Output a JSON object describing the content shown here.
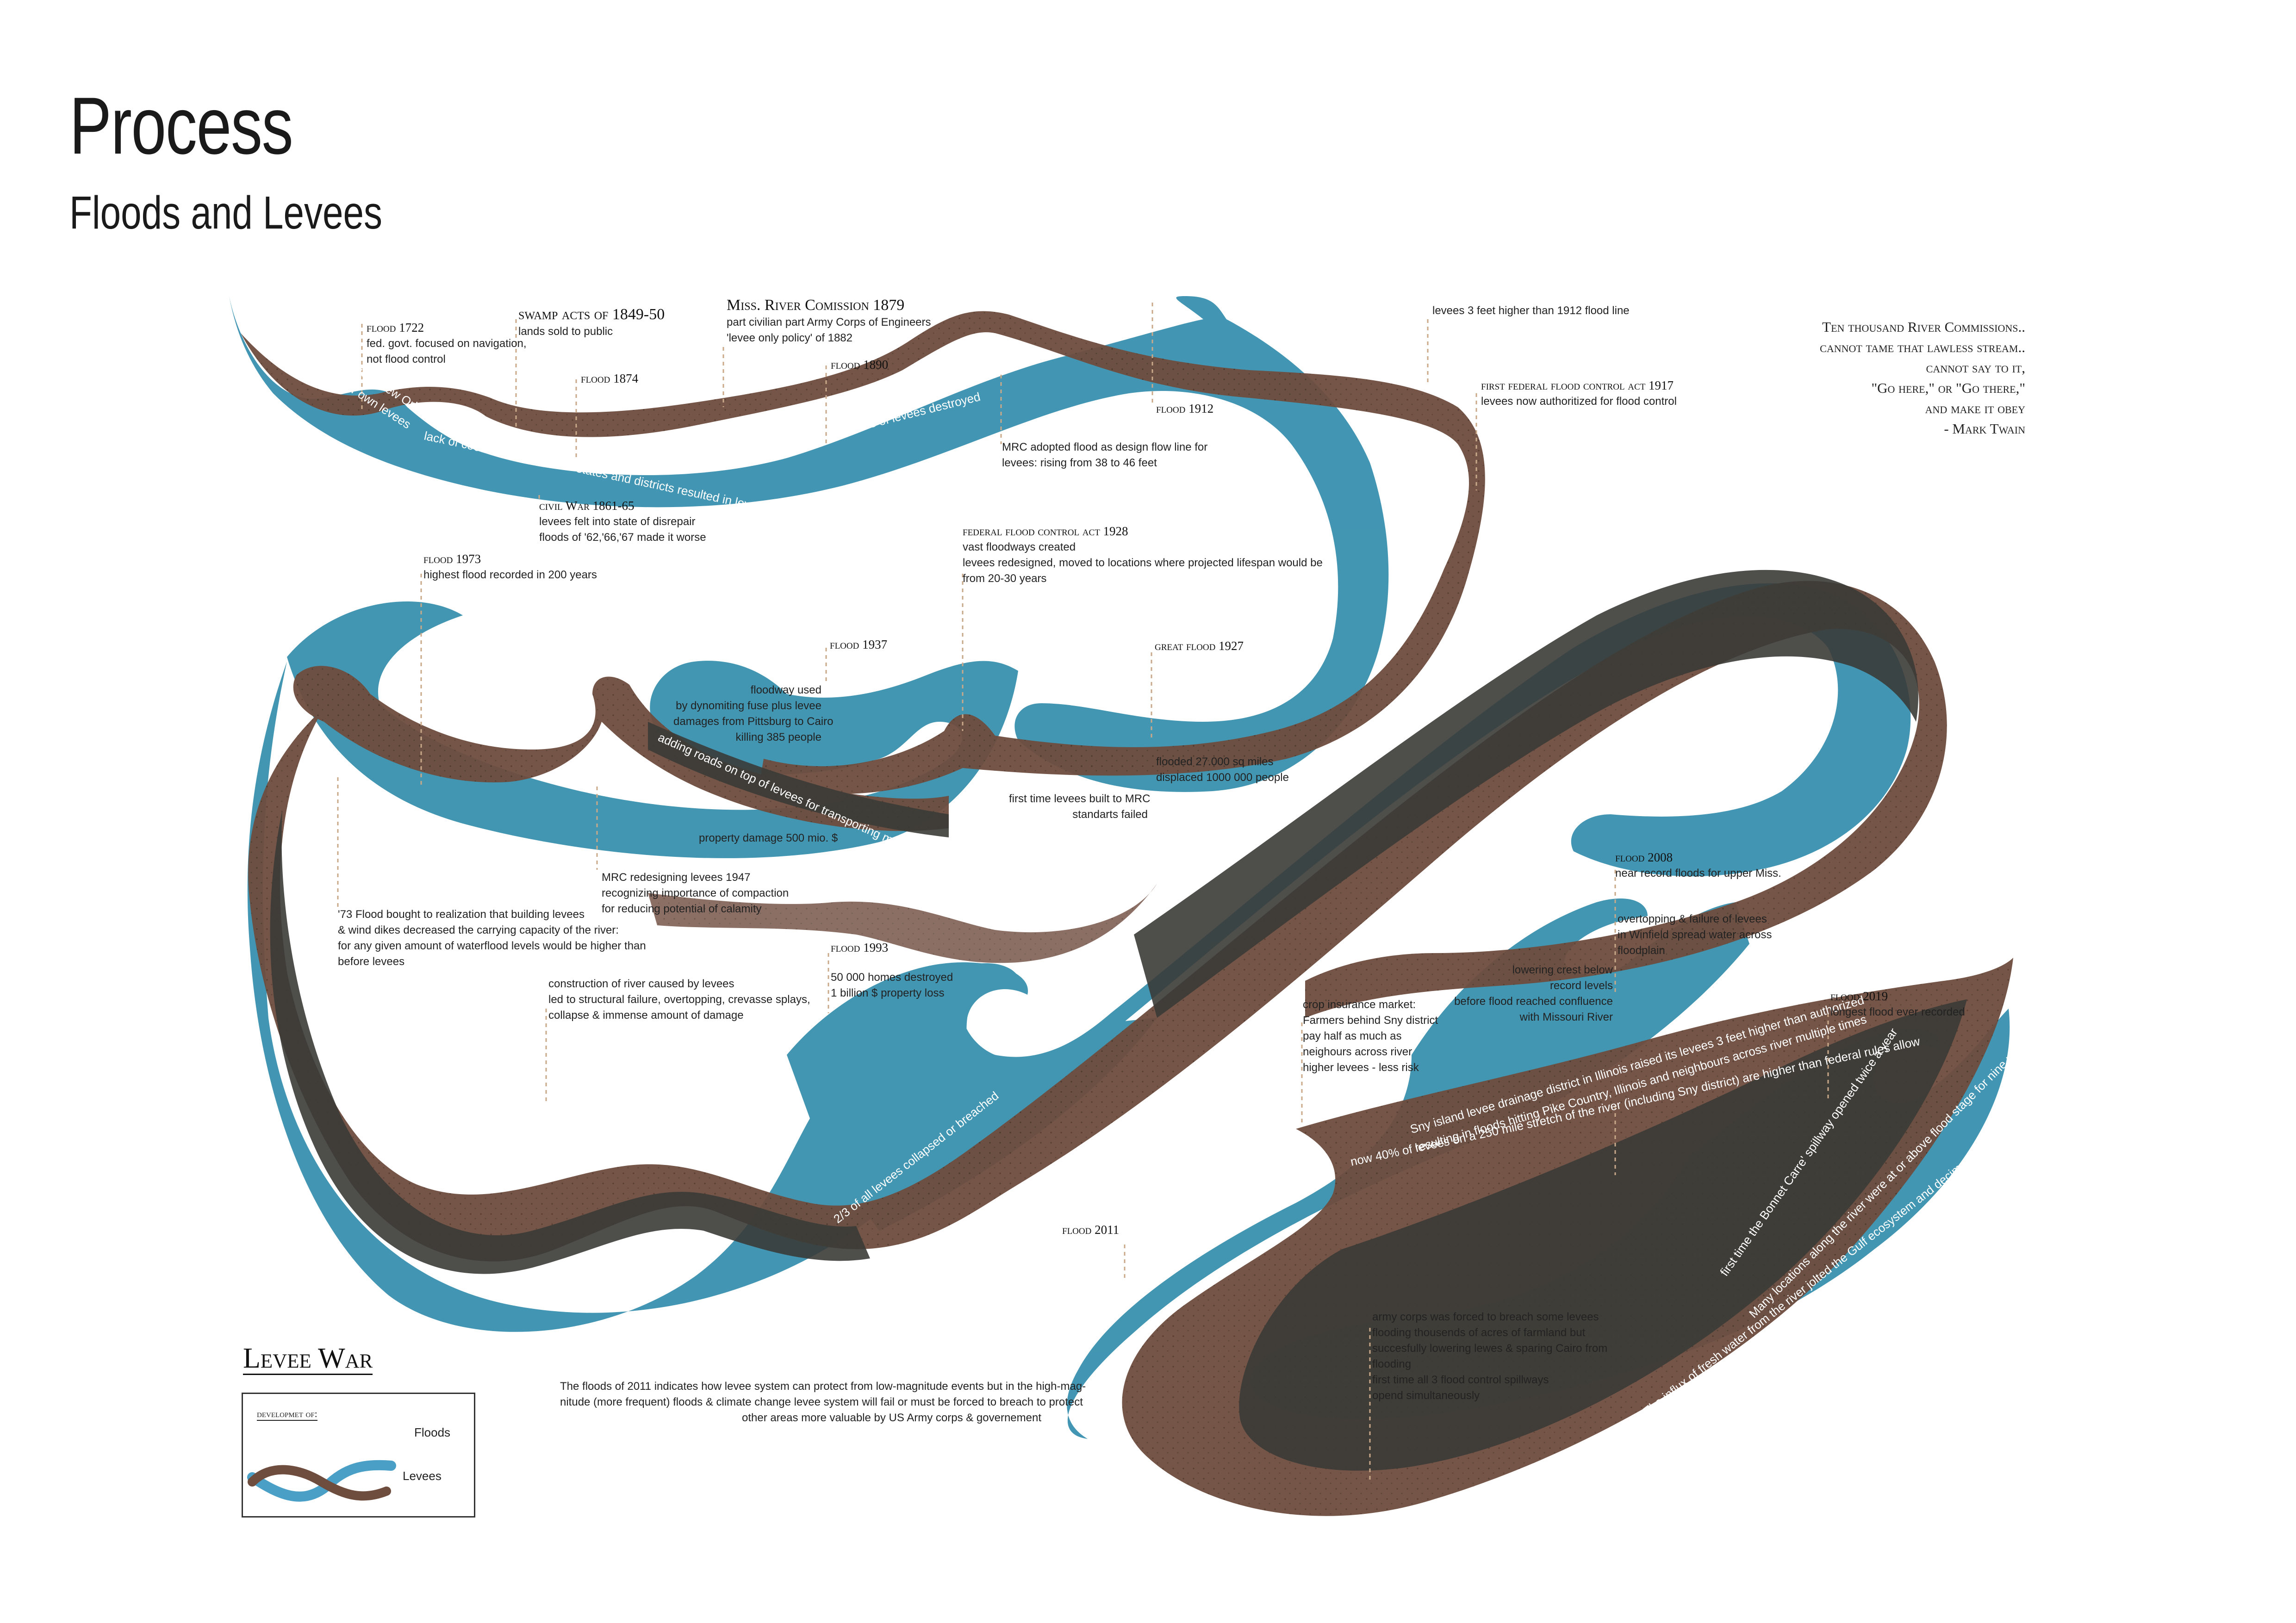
{
  "title": "Process",
  "subtitle": "Floods and Levees",
  "colors": {
    "flood": "#3f94b1",
    "levee": "#6e4c3e",
    "overlap": "#3b3b37"
  },
  "quote": {
    "lines": [
      "Ten thousand River Commissions..",
      "cannot tame that lawless stream..",
      "cannot say to it,",
      "\"Go here,\" or \"Go there,\"",
      "and make it obey",
      "- Mark Twain"
    ]
  },
  "annotations": {
    "flood1722": {
      "heading": "flood 1722",
      "lines": [
        "fed. govt. focused on navigation,",
        "not flood control"
      ]
    },
    "swamp": {
      "heading": "swamp acts of 1849-50",
      "lines": [
        "lands sold to public"
      ]
    },
    "flood1874": {
      "heading": "flood 1874",
      "lines": []
    },
    "commission1879": {
      "heading": "Miss. River Comission 1879",
      "lines": [
        "part civilian part Army Corps of Engineers",
        "'levee only policy' of 1882"
      ]
    },
    "flood1890": {
      "heading": "flood 1890",
      "lines": []
    },
    "flood1912": {
      "heading": "flood 1912",
      "lines": []
    },
    "levees3ft": {
      "heading": "",
      "lines": [
        "levees 3 feet higher than 1912 flood line"
      ]
    },
    "act1917": {
      "heading": "first federal flood control act 1917",
      "lines": [
        "levees now authoritized for flood control"
      ]
    },
    "mrc": {
      "heading": "",
      "lines": [
        "MRC adopted flood as design flow line for",
        "levees: rising from 38 to 46 feet"
      ]
    },
    "civilwar": {
      "heading": "civil War 1861-65",
      "lines": [
        "levees felt into state of disrepair",
        "floods of '62,'66,'67 made it worse"
      ]
    },
    "flood1973": {
      "heading": "flood 1973",
      "lines": [
        "highest flood recorded in 200 years"
      ]
    },
    "act1928": {
      "heading": "federal flood control act 1928",
      "lines": [
        "vast floodways created",
        "levees redesigned, moved to locations where projected lifespan would be",
        "from 20-30 years"
      ]
    },
    "flood1937": {
      "heading": "flood 1937",
      "lines": []
    },
    "dynamite": {
      "heading": "",
      "lines": [
        "floodway used",
        "by dynomiting fuse plus levee",
        "damages from Pittsburg to Cairo",
        "killing 385 people"
      ]
    },
    "great1927": {
      "heading": "great flood 1927",
      "lines": []
    },
    "flooded": {
      "heading": "",
      "lines": [
        "flooded 27.000 sq miles",
        "displaced 1000 000 people"
      ]
    },
    "firsttime": {
      "heading": "",
      "lines": [
        "first time levees built to MRC",
        "standarts failed"
      ]
    },
    "property": {
      "heading": "",
      "lines": [
        "property damage 500 mio. $"
      ]
    },
    "mrc1947": {
      "heading": "",
      "lines": [
        "MRC redesigning levees 1947",
        "recognizing importance of compaction",
        "for reducing potential of calamity"
      ]
    },
    "flood73": {
      "heading": "",
      "lines": [
        "'73 Flood bought to realization that building levees",
        "& wind dikes decreased the carrying capacity of the river:",
        "for any given amount of waterflood levels would be higher than",
        "before levees"
      ]
    },
    "construction": {
      "heading": "",
      "lines": [
        "construction of river caused by levees",
        "led to structural failure, overtopping, crevasse splays,",
        "collapse & immense amount of damage"
      ]
    },
    "flood1993": {
      "heading": "flood 1993",
      "lines": [
        "50 000 homes destroyed",
        "1 billion $ property loss"
      ]
    },
    "flood2008": {
      "heading": "flood 2008",
      "lines": [
        "near record floods for upper Miss."
      ]
    },
    "overtopping": {
      "heading": "",
      "lines": [
        "overtopping & failure of levees",
        "in Winfield spread water across",
        "floodplain"
      ]
    },
    "lowering": {
      "heading": "",
      "lines": [
        "lowering crest below",
        "record levels",
        "before flood reached confluence",
        "with Missouri River"
      ]
    },
    "crop": {
      "heading": "",
      "lines": [
        "crop insurance market:",
        "Farmers behind Sny district",
        "pay half as much as",
        "neighours across river",
        "higher levees - less risk"
      ]
    },
    "flood2019": {
      "heading": "flood 2019",
      "lines": [
        "longest flood ever recorded"
      ]
    },
    "flood2011": {
      "heading": "flood 2011",
      "lines": []
    },
    "army": {
      "heading": "",
      "lines": [
        "army corps was forced to breach some levees",
        "flooding thousends of acres of farmland but",
        "succesfully lowering lewes & sparing Cairo from",
        "flooding",
        "first time all 3 flood control spillways",
        "opend simultaneously"
      ]
    },
    "floods2011text": {
      "heading": "",
      "lines": [
        "The floods of 2011 indicates how levee system can protect from low-magnitude events but in the high-mag-",
        "nitude (more frequent) floods & climate change levee system will fail or must be forced to breach to protect",
        "other areas more valuable by US Army corps & governement"
      ]
    }
  },
  "flow_labels": {
    "first_levees": "1717 first levees built around New Orleans",
    "farmers": "farmers had to built their own levees",
    "coordination": "lack of coordination between states and districts resulted in levee failure",
    "miles56": "56 miles of levees destroyed",
    "roads": "adding roads on top of levees for transporting material during floods",
    "collapsed": "2/3 of all levees collapsed or breached",
    "sny1": "Sny island levee drainage district in Illinois raised its levees 3 feet higher than authorized",
    "sny2": "resulting in floods hitting Pike Country, Illinois and neighbours across river multiple times",
    "sny3": "now 40% of levees on a 250 mile stretch of the river (including Sny district) are higher than federal rules allow",
    "bonnet": "first time the Bonnet Carre' spillway opened twice a year",
    "stage": "Many locations along the river were at or above flood stage for nine months",
    "influx": "The influx of fresh water from the river jolted the Gulf ecosystem and decimated species like oysters and shrimp"
  },
  "legend": {
    "title": "Levee War",
    "heading": "developmet of:",
    "floods": "Floods",
    "levees": "Levees"
  }
}
